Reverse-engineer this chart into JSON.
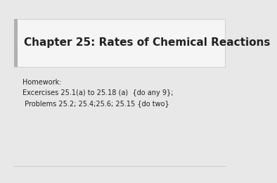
{
  "title": "Chapter 25: Rates of Chemical Reactions",
  "homework_line1": "Homework:",
  "homework_line2": "Excercises 25.1(a) to 25.18 (a)  {do any 9};",
  "homework_line3": " Problems 25.2; 25.4;25.6; 25.15 {do two}",
  "bg_color": "#e8e8e8",
  "title_box_facecolor": "#f5f5f5",
  "title_box_edge": "#cccccc",
  "accent_color": "#b0b0b0",
  "text_color": "#222222",
  "title_fontsize": 11,
  "body_fontsize": 7,
  "bottom_border_color": "#cccccc"
}
